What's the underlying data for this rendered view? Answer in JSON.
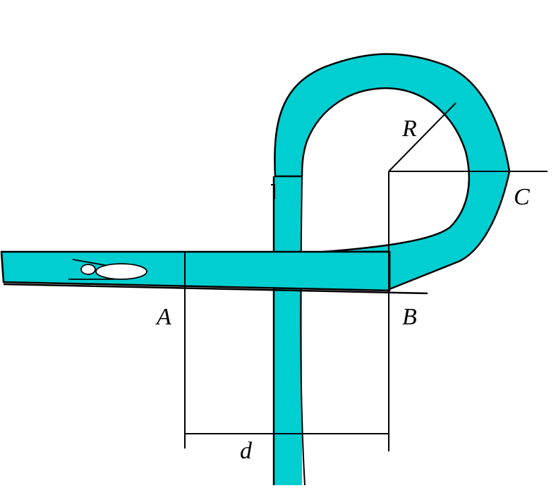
{
  "colors": {
    "track_fill": "#00CED1",
    "stroke": "#000000",
    "background": "#FFFFFF"
  },
  "labels": {
    "point_a": "A",
    "point_b": "B",
    "point_c": "C",
    "radius": "R",
    "distance": "d"
  },
  "icons": [
    "cart-icon"
  ]
}
